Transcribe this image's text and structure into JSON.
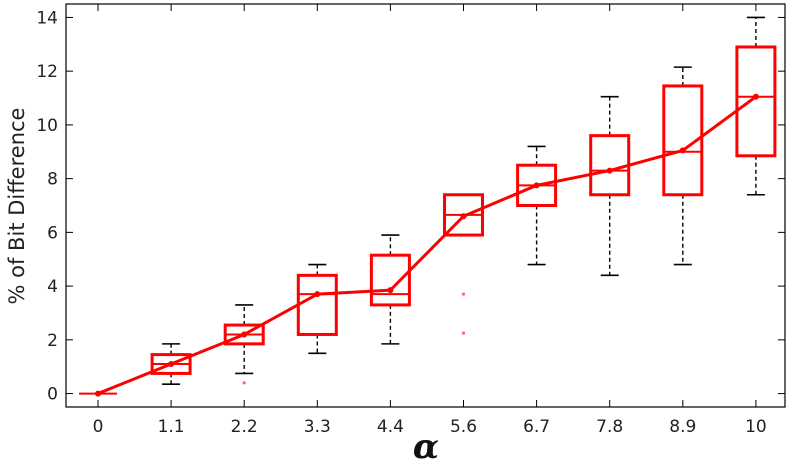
{
  "chart_data": {
    "type": "box",
    "xlabel": "α",
    "ylabel": "% of Bit Difference",
    "categories": [
      "0",
      "1.1",
      "2.2",
      "3.3",
      "4.4",
      "5.6",
      "6.7",
      "7.8",
      "8.9",
      "10"
    ],
    "ylim": [
      -0.5,
      14.5
    ],
    "yticks": [
      0,
      2,
      4,
      6,
      8,
      10,
      12,
      14
    ],
    "grid": false,
    "colors": {
      "box": "#ff0000",
      "whisker": "#000000",
      "outlier": "#ff6666"
    },
    "boxes": [
      {
        "label": "0",
        "whisker_low": 0,
        "q1": 0,
        "median": 0,
        "q3": 0,
        "whisker_high": 0,
        "mean": 0
      },
      {
        "label": "1.1",
        "whisker_low": 0.35,
        "q1": 0.75,
        "median": 1.1,
        "q3": 1.45,
        "whisker_high": 1.85,
        "mean": 1.1
      },
      {
        "label": "2.2",
        "whisker_low": 0.75,
        "q1": 1.85,
        "median": 2.2,
        "q3": 2.55,
        "whisker_high": 3.3,
        "mean": 2.2
      },
      {
        "label": "3.3",
        "whisker_low": 1.5,
        "q1": 2.2,
        "median": 3.7,
        "q3": 4.4,
        "whisker_high": 4.8,
        "mean": 3.7
      },
      {
        "label": "4.4",
        "whisker_low": 1.85,
        "q1": 3.3,
        "median": 3.7,
        "q3": 5.15,
        "whisker_high": 5.9,
        "mean": 3.85
      },
      {
        "label": "5.6",
        "whisker_low": 5.9,
        "q1": 5.9,
        "median": 6.65,
        "q3": 7.4,
        "whisker_high": 7.4,
        "mean": 6.6
      },
      {
        "label": "6.7",
        "whisker_low": 4.8,
        "q1": 7.0,
        "median": 7.75,
        "q3": 8.5,
        "whisker_high": 9.2,
        "mean": 7.75
      },
      {
        "label": "7.8",
        "whisker_low": 4.4,
        "q1": 7.4,
        "median": 8.3,
        "q3": 9.6,
        "whisker_high": 11.05,
        "mean": 8.3
      },
      {
        "label": "8.9",
        "whisker_low": 4.8,
        "q1": 7.4,
        "median": 9.0,
        "q3": 11.45,
        "whisker_high": 12.15,
        "mean": 9.05
      },
      {
        "label": "10",
        "whisker_low": 7.4,
        "q1": 8.85,
        "median": 11.05,
        "q3": 12.9,
        "whisker_high": 14.0,
        "mean": 11.05
      }
    ],
    "outliers": [
      {
        "category": "2.2",
        "value": 0.4
      },
      {
        "category": "5.6",
        "value": 3.7
      },
      {
        "category": "5.6",
        "value": 2.25
      }
    ]
  }
}
